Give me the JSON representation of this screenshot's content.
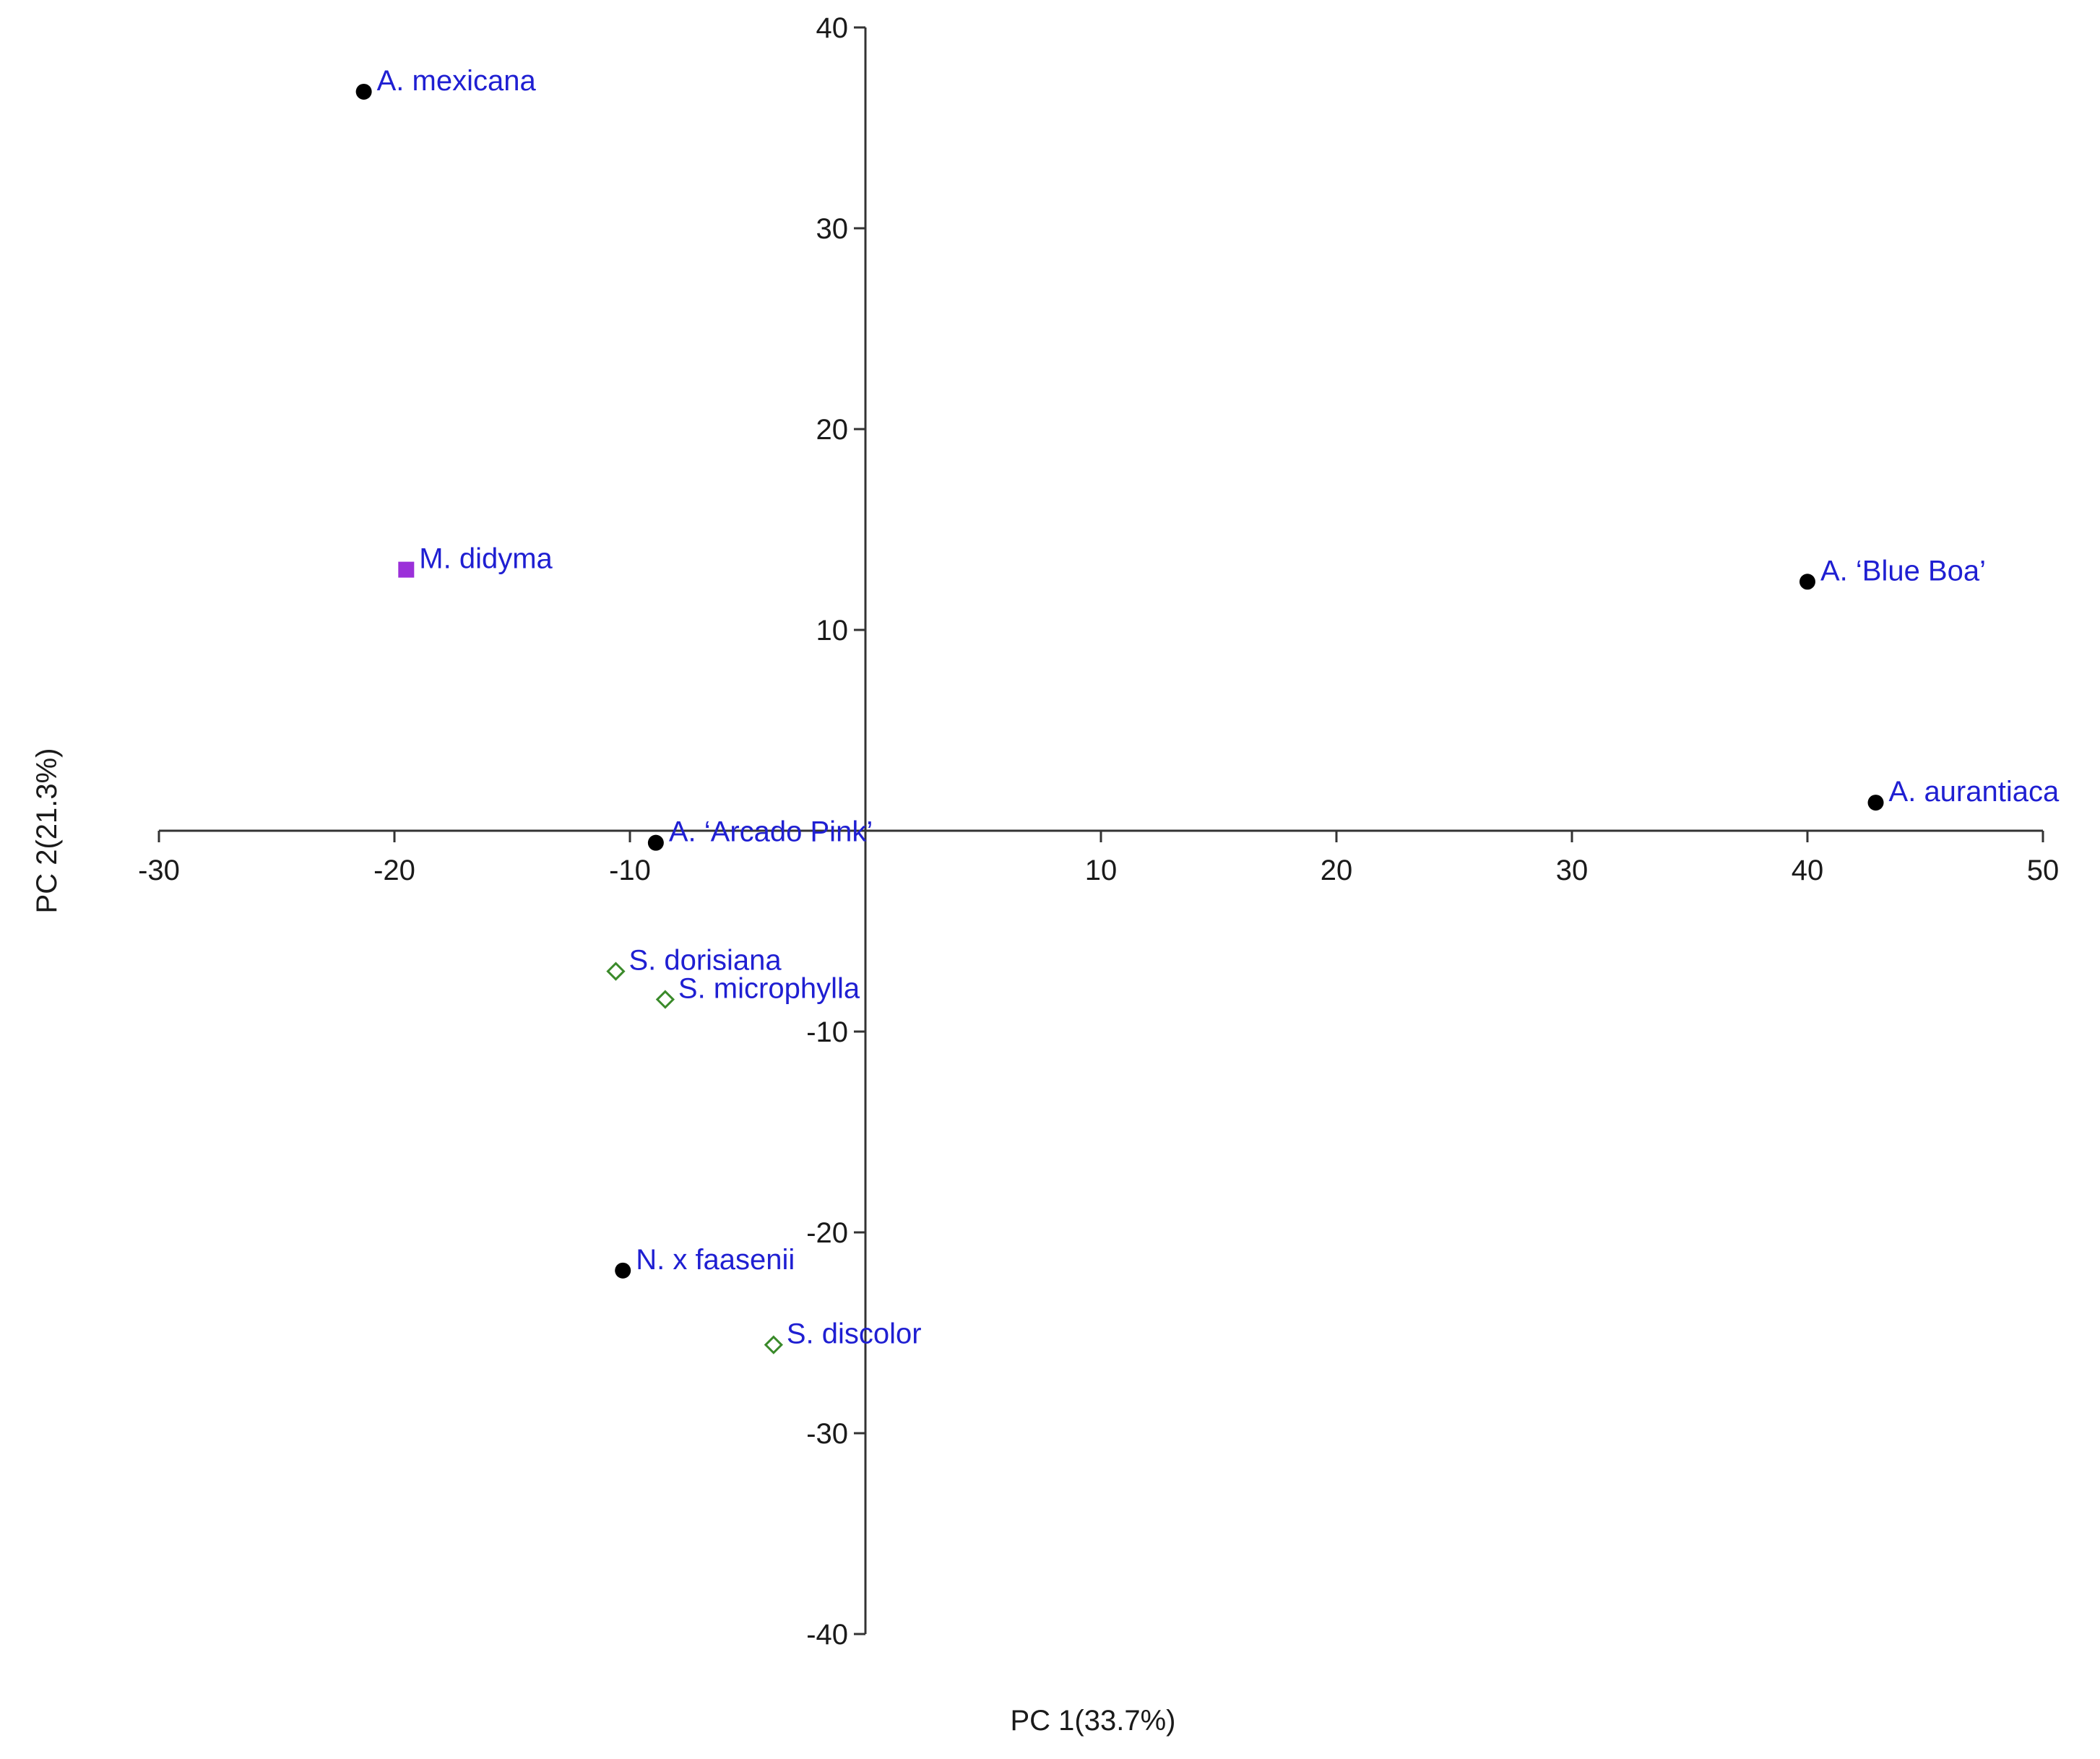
{
  "chart_data": {
    "type": "scatter",
    "title": "",
    "xlabel": "PC 1(33.7%)",
    "ylabel": "PC 2(21.3%)",
    "xlim": [
      -30,
      50
    ],
    "ylim": [
      -40,
      40
    ],
    "x_ticks": [
      -30,
      -20,
      -10,
      10,
      20,
      30,
      40,
      50
    ],
    "y_ticks": [
      -40,
      -30,
      -20,
      -10,
      10,
      20,
      30,
      40
    ],
    "grid": false,
    "label_color": "#1f1fd2",
    "points": [
      {
        "label": "A. mexicana",
        "x": -21.3,
        "y": 36.8,
        "marker": "circle",
        "color": "#000000"
      },
      {
        "label": "M. didyma",
        "x": -19.5,
        "y": 13.0,
        "marker": "square",
        "color": "#9b30d9"
      },
      {
        "label": "A. ‘Blue Boa’",
        "x": 40.0,
        "y": 12.4,
        "marker": "circle",
        "color": "#000000"
      },
      {
        "label": "A. aurantiaca",
        "x": 42.9,
        "y": 1.4,
        "marker": "circle",
        "color": "#000000"
      },
      {
        "label": "A. ‘Arcado Pink’",
        "x": -8.9,
        "y": -0.6,
        "marker": "circle",
        "color": "#000000"
      },
      {
        "label": "S. dorisiana",
        "x": -10.6,
        "y": -7.0,
        "marker": "diamond-open",
        "color": "#3a8a2a"
      },
      {
        "label": "S. microphylla",
        "x": -8.5,
        "y": -8.4,
        "marker": "diamond-open",
        "color": "#3a8a2a"
      },
      {
        "label": "N. x faasenii",
        "x": -10.3,
        "y": -21.9,
        "marker": "circle",
        "color": "#000000"
      },
      {
        "label": "S. discolor",
        "x": -3.9,
        "y": -25.6,
        "marker": "diamond-open",
        "color": "#3a8a2a"
      }
    ]
  }
}
